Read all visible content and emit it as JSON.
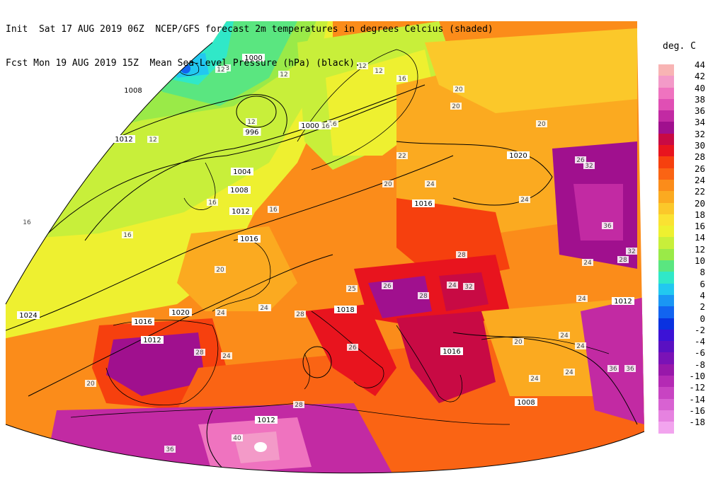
{
  "header": {
    "line1": "Init  Sat 17 AUG 2019 06Z  NCEP/GFS forecast 2m temperatures in degrees Celcius (shaded)",
    "line2": "Fcst Mon 19 AUG 2019 15Z  Mean Sea-Level Pressure (hPa) (black)."
  },
  "legend": {
    "unit": "deg. C",
    "entries": [
      {
        "label": "44",
        "color": "#f8b4b4"
      },
      {
        "label": "42",
        "color": "#f39ac8"
      },
      {
        "label": "40",
        "color": "#ef73bf"
      },
      {
        "label": "38",
        "color": "#e04fb4"
      },
      {
        "label": "36",
        "color": "#c22aa3"
      },
      {
        "label": "34",
        "color": "#a0108e"
      },
      {
        "label": "32",
        "color": "#c80a44"
      },
      {
        "label": "30",
        "color": "#e8141e"
      },
      {
        "label": "28",
        "color": "#f6400e"
      },
      {
        "label": "26",
        "color": "#fa6414"
      },
      {
        "label": "24",
        "color": "#fb8c1a"
      },
      {
        "label": "22",
        "color": "#fbaa20"
      },
      {
        "label": "20",
        "color": "#fbc82a"
      },
      {
        "label": "18",
        "color": "#fae232"
      },
      {
        "label": "16",
        "color": "#eef030"
      },
      {
        "label": "14",
        "color": "#c8ef3a"
      },
      {
        "label": "12",
        "color": "#9aea48"
      },
      {
        "label": "10",
        "color": "#5ae680"
      },
      {
        "label": "8",
        "color": "#30e8c8"
      },
      {
        "label": "6",
        "color": "#22c8f0"
      },
      {
        "label": "4",
        "color": "#1a96f4"
      },
      {
        "label": "2",
        "color": "#1264f0"
      },
      {
        "label": "0",
        "color": "#0a32e0"
      },
      {
        "label": "-2",
        "color": "#3c12d6"
      },
      {
        "label": "-4",
        "color": "#5a10c2"
      },
      {
        "label": "-6",
        "color": "#7a12b6"
      },
      {
        "label": "-8",
        "color": "#9818aa"
      },
      {
        "label": "-10",
        "color": "#b42ab4"
      },
      {
        "label": "-12",
        "color": "#c844c2"
      },
      {
        "label": "-14",
        "color": "#d862d2"
      },
      {
        "label": "-16",
        "color": "#e682e0"
      },
      {
        "label": "-18",
        "color": "#f2a4ee"
      }
    ]
  },
  "isobar_labels": [
    "1000",
    "1008",
    "1012",
    "996",
    "1000",
    "1004",
    "1008",
    "1012",
    "1016",
    "1020",
    "1024",
    "1016",
    "1012",
    "1018",
    "1016",
    "1012",
    "1008",
    "1012",
    "1016",
    "1020"
  ],
  "temperature_labels": [
    "8",
    "12",
    "12",
    "12",
    "12",
    "16",
    "16",
    "12",
    "16",
    "20",
    "20",
    "22",
    "20",
    "24",
    "24",
    "16",
    "16",
    "20",
    "24",
    "24",
    "28",
    "28",
    "28",
    "24",
    "32",
    "26",
    "32",
    "36",
    "32",
    "24",
    "28",
    "24",
    "24",
    "24",
    "20",
    "24",
    "24",
    "28",
    "36",
    "36",
    "40",
    "36",
    "20",
    "28",
    "25",
    "24",
    "26",
    "24",
    "26",
    "16",
    "12",
    "16",
    "20"
  ]
}
